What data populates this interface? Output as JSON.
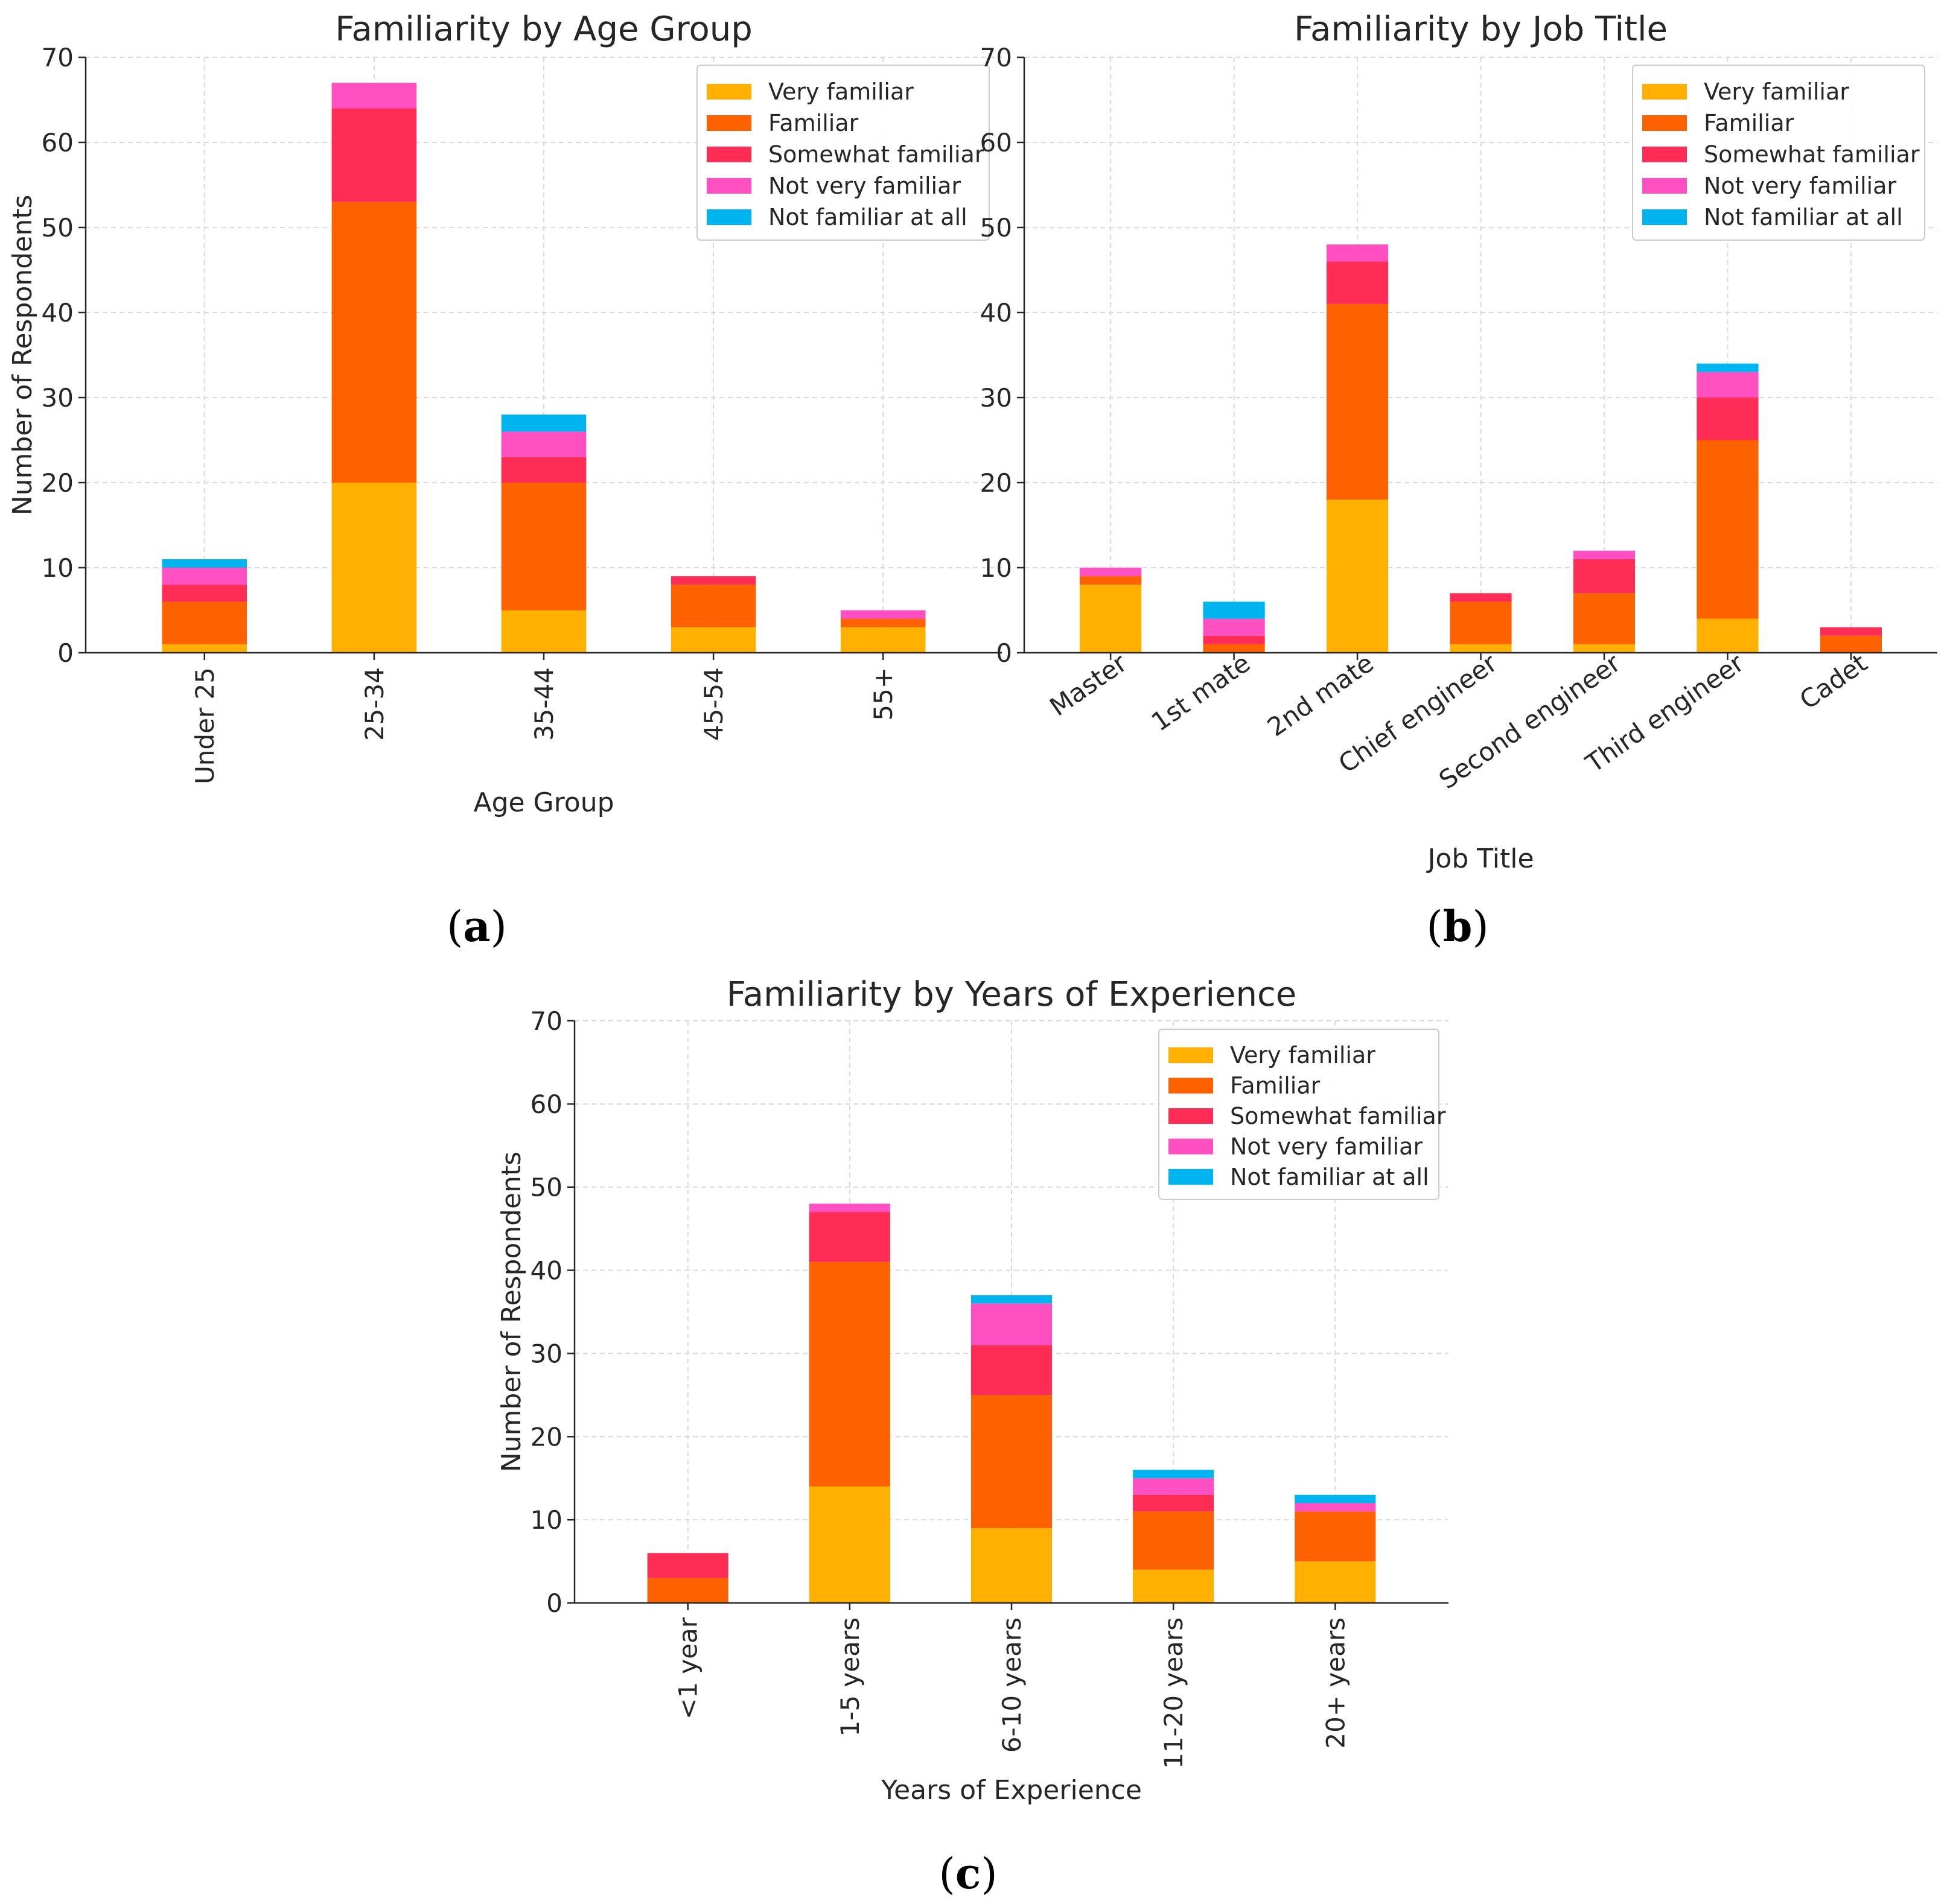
{
  "chart_data": [
    {
      "type": "bar",
      "stacked": true,
      "panel_label": "a",
      "title": "Familiarity by Age Group",
      "xlabel": "Age Group",
      "ylabel": "Number of Respondents",
      "ylim": [
        0,
        70
      ],
      "yticks": [
        0,
        10,
        20,
        30,
        40,
        50,
        60,
        70
      ],
      "grid": true,
      "legend_position": "top-right",
      "categories": [
        "Under 25",
        "25-34",
        "35-44",
        "45-54",
        "55+"
      ],
      "series": [
        {
          "name": "Very familiar",
          "color": "#FFB000",
          "values": [
            1,
            20,
            5,
            3,
            3
          ]
        },
        {
          "name": "Familiar",
          "color": "#FE6100",
          "values": [
            5,
            33,
            15,
            5,
            1
          ]
        },
        {
          "name": "Somewhat familiar",
          "color": "#FF2D55",
          "values": [
            2,
            11,
            3,
            1,
            0
          ]
        },
        {
          "name": "Not very familiar",
          "color": "#FF4FC0",
          "values": [
            2,
            3,
            3,
            0,
            1
          ]
        },
        {
          "name": "Not familiar at all",
          "color": "#00B4F0",
          "values": [
            1,
            0,
            2,
            0,
            0
          ]
        }
      ]
    },
    {
      "type": "bar",
      "stacked": true,
      "panel_label": "b",
      "title": "Familiarity by Job Title",
      "xlabel": "Job Title",
      "ylabel": "",
      "ylim": [
        0,
        70
      ],
      "yticks": [
        0,
        10,
        20,
        30,
        40,
        50,
        60,
        70
      ],
      "grid": true,
      "legend_position": "top-right",
      "categories": [
        "Master",
        "1st mate",
        "2nd mate",
        "Chief engineer",
        "Second engineer",
        "Third engineer",
        "Cadet"
      ],
      "series": [
        {
          "name": "Very familiar",
          "color": "#FFB000",
          "values": [
            8,
            0,
            18,
            1,
            1,
            4,
            0
          ]
        },
        {
          "name": "Familiar",
          "color": "#FE6100",
          "values": [
            1,
            1,
            23,
            5,
            6,
            21,
            2
          ]
        },
        {
          "name": "Somewhat familiar",
          "color": "#FF2D55",
          "values": [
            0,
            1,
            5,
            1,
            4,
            5,
            1
          ]
        },
        {
          "name": "Not very familiar",
          "color": "#FF4FC0",
          "values": [
            1,
            2,
            2,
            0,
            1,
            3,
            0
          ]
        },
        {
          "name": "Not familiar at all",
          "color": "#00B4F0",
          "values": [
            0,
            2,
            0,
            0,
            0,
            1,
            0
          ]
        }
      ]
    },
    {
      "type": "bar",
      "stacked": true,
      "panel_label": "c",
      "title": "Familiarity by Years of Experience",
      "xlabel": "Years of Experience",
      "ylabel": "Number of Respondents",
      "ylim": [
        0,
        70
      ],
      "yticks": [
        0,
        10,
        20,
        30,
        40,
        50,
        60,
        70
      ],
      "grid": true,
      "legend_position": "top-right",
      "categories": [
        "<1 year",
        "1-5 years",
        "6-10 years",
        "11-20 years",
        "20+ years"
      ],
      "series": [
        {
          "name": "Very familiar",
          "color": "#FFB000",
          "values": [
            0,
            14,
            9,
            4,
            5
          ]
        },
        {
          "name": "Familiar",
          "color": "#FE6100",
          "values": [
            3,
            27,
            16,
            7,
            6
          ]
        },
        {
          "name": "Somewhat familiar",
          "color": "#FF2D55",
          "values": [
            3,
            6,
            6,
            2,
            0
          ]
        },
        {
          "name": "Not very familiar",
          "color": "#FF4FC0",
          "values": [
            0,
            1,
            5,
            2,
            1
          ]
        },
        {
          "name": "Not familiar at all",
          "color": "#00B4F0",
          "values": [
            0,
            0,
            1,
            1,
            1
          ]
        }
      ]
    }
  ]
}
